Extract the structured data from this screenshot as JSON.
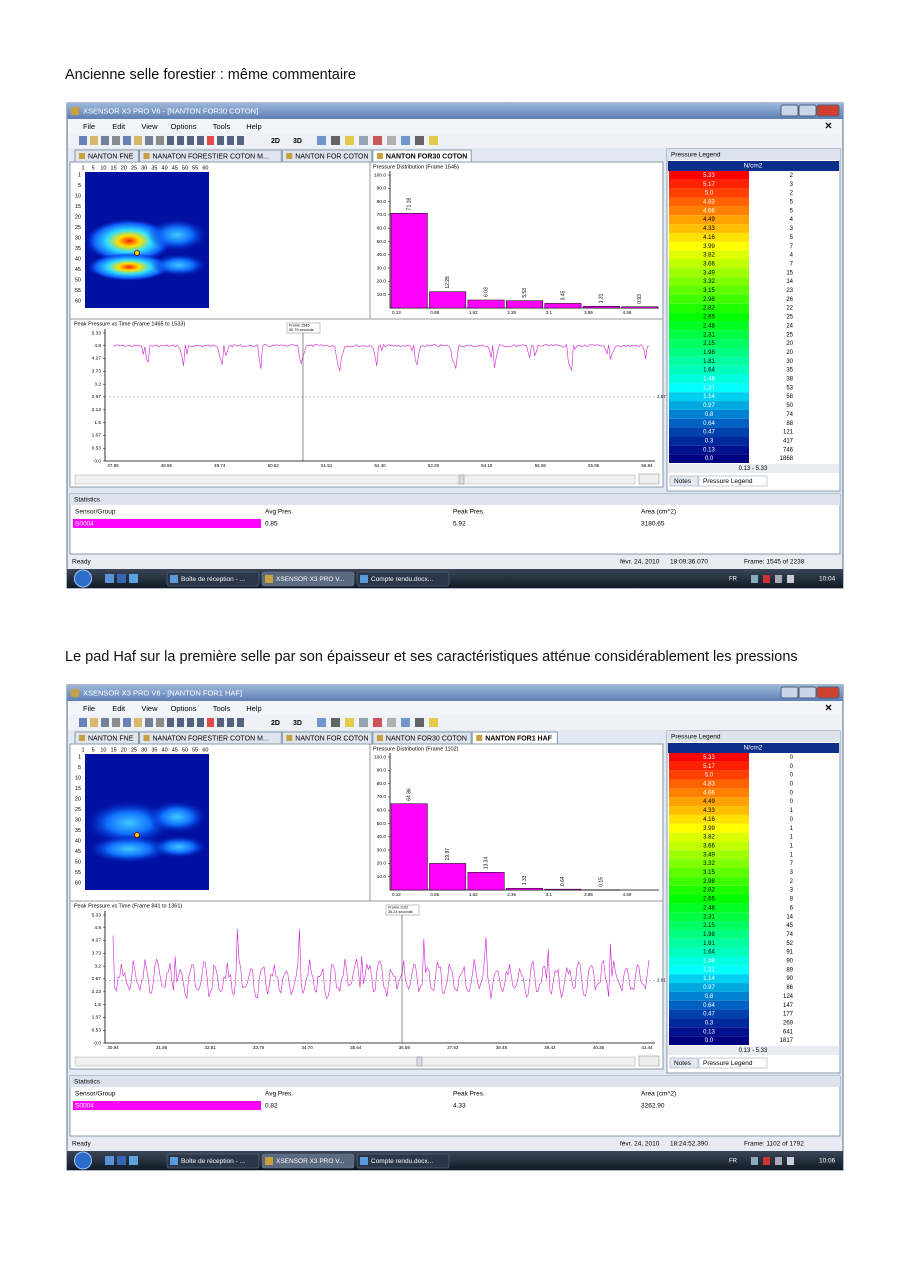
{
  "sections": [
    {
      "caption": "Ancienne selle forestier : même commentaire",
      "window": {
        "title": "XSENSOR X3 PRO V6 - [NANTON FOR30 COTON]",
        "menus": [
          "File",
          "Edit",
          "View",
          "Options",
          "Tools",
          "Help"
        ],
        "toolbar": [
          "2D",
          "3D"
        ],
        "tabs": [
          "NANTON FNE",
          "NANATON FORESTIER COTON M...",
          "NANTON FOR COTON",
          "NANTON FOR30 COTON"
        ],
        "heatmap": {
          "x_labels": [
            1,
            5,
            10,
            15,
            20,
            25,
            30,
            35,
            40,
            45,
            50,
            55,
            60
          ],
          "y_labels": [
            1,
            5,
            10,
            15,
            20,
            25,
            30,
            35,
            40,
            45,
            50,
            55,
            60
          ]
        },
        "distribution": {
          "title": "Pressure Distribution (Frame 1545)",
          "bins": [
            "0.13",
            "0.88",
            "1.62",
            "2.36",
            "3.1",
            "3.85",
            "4.59"
          ],
          "values": [
            71.18,
            12.28,
            6.03,
            5.53,
            3.45,
            1.31,
            0.93
          ],
          "color": "#ff00ff",
          "ylim": [
            0,
            100
          ],
          "yticks": [
            {
              "value": 10,
              "label": "10.0"
            },
            {
              "value": 20,
              "label": "20.0"
            },
            {
              "value": 30,
              "label": "30.0"
            },
            {
              "value": 40,
              "label": "40.0"
            },
            {
              "value": 50,
              "label": "50.0"
            },
            {
              "value": 60,
              "label": "60.0"
            },
            {
              "value": 70,
              "label": "70.0"
            },
            {
              "value": 80,
              "label": "80.0"
            },
            {
              "value": 90,
              "label": "90.0"
            },
            {
              "value": 100,
              "label": "100.0"
            }
          ]
        },
        "timeline": {
          "title": "Peak Pressure vs Time (Frame 1465 to 1533)",
          "ylim": [
            0,
            5.33
          ],
          "yticks": [
            {
              "value": 0,
              "label": "0.0"
            },
            0.53,
            1.07,
            1.6,
            2.13,
            2.67,
            3.2,
            3.73,
            4.27,
            4.8,
            5.33
          ],
          "xticks": [
            "47.99",
            "48.86",
            "49.74",
            "50.62",
            "51.51",
            "52.40",
            "53.29",
            "54.18",
            "55.06",
            "55.95",
            "56.84"
          ],
          "marker": [
            "Frame 1545",
            "50.79 seconds"
          ],
          "reference": 2.67
        },
        "legend": {
          "title": "Pressure Legend",
          "units": "N/cm2",
          "levels": [
            "5.33",
            "5.17",
            "5.0",
            "4.83",
            "4.66",
            "4.49",
            "4.33",
            "4.16",
            "3.99",
            "3.82",
            "3.66",
            "3.49",
            "3.32",
            "3.15",
            "2.98",
            "2.82",
            "2.65",
            "2.48",
            "2.31",
            "2.15",
            "1.98",
            "1.81",
            "1.64",
            "1.48",
            "1.31",
            "1.14",
            "0.97",
            "0.8",
            "0.64",
            "0.47",
            "0.3",
            "0.13",
            "0.0"
          ],
          "counts": [
            2,
            3,
            2,
            5,
            5,
            4,
            3,
            5,
            7,
            4,
            7,
            15,
            14,
            23,
            26,
            22,
            25,
            24,
            25,
            20,
            20,
            30,
            35,
            38,
            53,
            58,
            50,
            74,
            88,
            121,
            417,
            746,
            1868
          ],
          "range": "0.13 - 5.33",
          "tabs": [
            "Notes",
            "Pressure Legend"
          ]
        },
        "statistics": {
          "title": "Statistics",
          "columns": [
            "Sensor/Group",
            "Avg Pres.",
            "Peak Pres.",
            "Area (cm^2)"
          ],
          "row": [
            "S0004",
            "0.85",
            "5.92",
            "3180.65"
          ]
        },
        "status": {
          "left": "Ready",
          "date": "févr. 24, 2010",
          "time": "18:09:36.070",
          "frame": "Frame: 1545 of 2238"
        },
        "taskbar": {
          "items": [
            "Boîte de réception - ...",
            "XSENSOR X3 PRO V...",
            "Compte rendu.docx..."
          ],
          "lang": "FR",
          "clock": "10:04"
        }
      }
    },
    {
      "caption": "Le pad Haf sur la première selle par son épaisseur et ses caractéristiques atténue considérablement les pressions",
      "window": {
        "title": "XSENSOR X3 PRO V6 - [NANTON FOR1 HAF]",
        "menus": [
          "File",
          "Edit",
          "View",
          "Options",
          "Tools",
          "Help"
        ],
        "toolbar": [
          "2D",
          "3D"
        ],
        "tabs": [
          "NANTON FNE",
          "NANATON FORESTIER COTON M...",
          "NANTON FOR COTON",
          "NANTON FOR30 COTON",
          "NANTON FOR1 HAF"
        ],
        "heatmap": {
          "x_labels": [
            1,
            5,
            10,
            15,
            20,
            25,
            30,
            35,
            40,
            45,
            50,
            55,
            60
          ],
          "y_labels": [
            1,
            5,
            10,
            15,
            20,
            25,
            30,
            35,
            40,
            45,
            50,
            55,
            60
          ]
        },
        "distribution": {
          "title": "Pressure Distribution (Frame 1102)",
          "bins": [
            "0.12",
            "0.86",
            "1.62",
            "2.36",
            "3.1",
            "3.85",
            "4.59"
          ],
          "values": [
            64.86,
            19.97,
            13.34,
            1.33,
            0.64,
            0.15
          ],
          "color": "#ff00ff",
          "ylim": [
            0,
            100
          ],
          "yticks": [
            {
              "value": 10,
              "label": "10.0"
            },
            {
              "value": 20,
              "label": "20.0"
            },
            {
              "value": 30,
              "label": "30.0"
            },
            {
              "value": 40,
              "label": "40.0"
            },
            {
              "value": 50,
              "label": "50.0"
            },
            {
              "value": 60,
              "label": "60.0"
            },
            {
              "value": 70,
              "label": "70.0"
            },
            {
              "value": 80,
              "label": "80.0"
            },
            {
              "value": 90,
              "label": "90.0"
            },
            {
              "value": 100,
              "label": "100.0"
            }
          ]
        },
        "timeline": {
          "title": "Peak Pressure vs Time (Frame 841 to 1361)",
          "ylim": [
            0,
            5.33
          ],
          "yticks": [
            {
              "value": 0,
              "label": "0.0"
            },
            0.53,
            1.07,
            1.6,
            2.13,
            2.67,
            3.2,
            3.73,
            4.27,
            4.8,
            5.33
          ],
          "xticks": [
            "30.94",
            "31.86",
            "32.81",
            "33.76",
            "34.70",
            "35.64",
            "36.59",
            "37.53",
            "38.48",
            "39.42",
            "40.36",
            "41.44"
          ],
          "marker": [
            "Frame 1102",
            "36.24 seconds"
          ],
          "reference": 2.61
        },
        "legend": {
          "title": "Pressure Legend",
          "units": "N/cm2",
          "levels": [
            "5.33",
            "5.17",
            "5.0",
            "4.83",
            "4.66",
            "4.49",
            "4.33",
            "4.16",
            "3.99",
            "3.82",
            "3.66",
            "3.49",
            "3.32",
            "3.15",
            "2.98",
            "2.82",
            "2.65",
            "2.48",
            "2.31",
            "2.15",
            "1.98",
            "1.81",
            "1.64",
            "1.48",
            "1.31",
            "1.14",
            "0.97",
            "0.8",
            "0.64",
            "0.47",
            "0.3",
            "0.13",
            "0.0"
          ],
          "counts": [
            0,
            0,
            0,
            0,
            0,
            0,
            1,
            0,
            1,
            1,
            1,
            1,
            7,
            3,
            2,
            3,
            8,
            6,
            14,
            45,
            74,
            52,
            91,
            90,
            89,
            90,
            86,
            124,
            147,
            177,
            269,
            641,
            1817
          ],
          "range": "0.13 - 5.33",
          "tabs": [
            "Notes",
            "Pressure Legend"
          ]
        },
        "statistics": {
          "title": "Statistics",
          "columns": [
            "Sensor/Group",
            "Avg Pres.",
            "Peak Pres.",
            "Area (cm^2)"
          ],
          "row": [
            "S0004",
            "0.82",
            "4.33",
            "3262.90"
          ]
        },
        "status": {
          "left": "Ready",
          "date": "févr. 24, 2010",
          "time": "18:24:52.390",
          "frame": "Frame: 1102 of 1792"
        },
        "taskbar": {
          "items": [
            "Boîte de réception - ...",
            "XSENSOR X3 PRO V...",
            "Compte rendu.docx..."
          ],
          "lang": "FR",
          "clock": "10:06"
        }
      }
    }
  ]
}
